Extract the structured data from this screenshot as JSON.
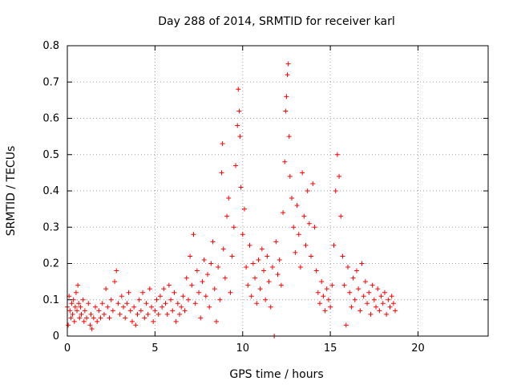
{
  "chart_data": {
    "type": "scatter",
    "title": "Day 288 of 2014, SRMTID for receiver karl",
    "xlabel": "GPS time / hours",
    "ylabel": "SRMTID / TECUs",
    "xlim": [
      0,
      24
    ],
    "ylim": [
      0,
      0.8
    ],
    "xticks": [
      0,
      5,
      10,
      15,
      20
    ],
    "yticks": [
      0,
      0.1,
      0.2,
      0.3,
      0.4,
      0.5,
      0.6,
      0.7,
      0.8
    ],
    "xtick_labels": [
      "0",
      "5",
      "10",
      "15",
      "20"
    ],
    "ytick_labels": [
      "0",
      "0.1",
      "0.2",
      "0.3",
      "0.4",
      "0.5",
      "0.6",
      "0.7",
      "0.8"
    ],
    "grid": true,
    "marker": "plus",
    "color": "#ff0000",
    "series": [
      {
        "name": "SRMTID",
        "points": [
          [
            0.0,
            0.08
          ],
          [
            0.05,
            0.03
          ],
          [
            0.1,
            0.11
          ],
          [
            0.15,
            0.07
          ],
          [
            0.2,
            0.05
          ],
          [
            0.25,
            0.09
          ],
          [
            0.3,
            0.06
          ],
          [
            0.35,
            0.1
          ],
          [
            0.4,
            0.04
          ],
          [
            0.45,
            0.08
          ],
          [
            0.5,
            0.12
          ],
          [
            0.55,
            0.07
          ],
          [
            0.6,
            0.14
          ],
          [
            0.65,
            0.09
          ],
          [
            0.7,
            0.05
          ],
          [
            0.75,
            0.08
          ],
          [
            0.8,
            0.06
          ],
          [
            0.9,
            0.1
          ],
          [
            0.95,
            0.04
          ],
          [
            1.0,
            0.07
          ],
          [
            1.1,
            0.05
          ],
          [
            1.2,
            0.09
          ],
          [
            1.3,
            0.03
          ],
          [
            1.35,
            0.06
          ],
          [
            1.4,
            0.02
          ],
          [
            1.5,
            0.05
          ],
          [
            1.6,
            0.08
          ],
          [
            1.7,
            0.04
          ],
          [
            1.8,
            0.07
          ],
          [
            1.9,
            0.05
          ],
          [
            2.0,
            0.09
          ],
          [
            2.1,
            0.06
          ],
          [
            2.2,
            0.13
          ],
          [
            2.3,
            0.08
          ],
          [
            2.4,
            0.05
          ],
          [
            2.5,
            0.1
          ],
          [
            2.6,
            0.07
          ],
          [
            2.7,
            0.15
          ],
          [
            2.8,
            0.18
          ],
          [
            2.9,
            0.09
          ],
          [
            3.0,
            0.06
          ],
          [
            3.1,
            0.11
          ],
          [
            3.2,
            0.08
          ],
          [
            3.3,
            0.05
          ],
          [
            3.4,
            0.09
          ],
          [
            3.5,
            0.12
          ],
          [
            3.6,
            0.07
          ],
          [
            3.7,
            0.04
          ],
          [
            3.8,
            0.08
          ],
          [
            3.9,
            0.03
          ],
          [
            4.0,
            0.06
          ],
          [
            4.1,
            0.1
          ],
          [
            4.2,
            0.07
          ],
          [
            4.3,
            0.12
          ],
          [
            4.4,
            0.05
          ],
          [
            4.5,
            0.09
          ],
          [
            4.6,
            0.06
          ],
          [
            4.7,
            0.13
          ],
          [
            4.8,
            0.08
          ],
          [
            4.9,
            0.04
          ],
          [
            5.0,
            0.07
          ],
          [
            5.1,
            0.1
          ],
          [
            5.2,
            0.06
          ],
          [
            5.3,
            0.11
          ],
          [
            5.4,
            0.08
          ],
          [
            5.5,
            0.13
          ],
          [
            5.6,
            0.09
          ],
          [
            5.7,
            0.06
          ],
          [
            5.8,
            0.14
          ],
          [
            5.9,
            0.1
          ],
          [
            6.0,
            0.07
          ],
          [
            6.1,
            0.12
          ],
          [
            6.2,
            0.04
          ],
          [
            6.3,
            0.09
          ],
          [
            6.4,
            0.06
          ],
          [
            6.5,
            0.08
          ],
          [
            6.6,
            0.11
          ],
          [
            6.7,
            0.07
          ],
          [
            6.8,
            0.16
          ],
          [
            6.9,
            0.1
          ],
          [
            7.0,
            0.22
          ],
          [
            7.1,
            0.14
          ],
          [
            7.2,
            0.28
          ],
          [
            7.3,
            0.09
          ],
          [
            7.4,
            0.18
          ],
          [
            7.5,
            0.12
          ],
          [
            7.6,
            0.05
          ],
          [
            7.7,
            0.15
          ],
          [
            7.8,
            0.21
          ],
          [
            7.9,
            0.11
          ],
          [
            8.0,
            0.17
          ],
          [
            8.1,
            0.08
          ],
          [
            8.2,
            0.2
          ],
          [
            8.3,
            0.26
          ],
          [
            8.4,
            0.13
          ],
          [
            8.5,
            0.04
          ],
          [
            8.6,
            0.19
          ],
          [
            8.7,
            0.1
          ],
          [
            8.8,
            0.45
          ],
          [
            8.85,
            0.53
          ],
          [
            8.9,
            0.24
          ],
          [
            9.0,
            0.16
          ],
          [
            9.1,
            0.33
          ],
          [
            9.2,
            0.38
          ],
          [
            9.3,
            0.12
          ],
          [
            9.4,
            0.22
          ],
          [
            9.5,
            0.3
          ],
          [
            9.6,
            0.47
          ],
          [
            9.7,
            0.58
          ],
          [
            9.75,
            0.68
          ],
          [
            9.8,
            0.62
          ],
          [
            9.85,
            0.55
          ],
          [
            9.9,
            0.41
          ],
          [
            10.0,
            0.28
          ],
          [
            10.1,
            0.35
          ],
          [
            10.2,
            0.19
          ],
          [
            10.3,
            0.14
          ],
          [
            10.4,
            0.25
          ],
          [
            10.5,
            0.11
          ],
          [
            10.6,
            0.2
          ],
          [
            10.7,
            0.16
          ],
          [
            10.8,
            0.09
          ],
          [
            10.9,
            0.21
          ],
          [
            11.0,
            0.13
          ],
          [
            11.1,
            0.24
          ],
          [
            11.2,
            0.18
          ],
          [
            11.3,
            0.1
          ],
          [
            11.4,
            0.22
          ],
          [
            11.5,
            0.15
          ],
          [
            11.6,
            0.08
          ],
          [
            11.7,
            0.19
          ],
          [
            11.8,
            0.0
          ],
          [
            11.9,
            0.26
          ],
          [
            12.0,
            0.17
          ],
          [
            12.1,
            0.21
          ],
          [
            12.2,
            0.14
          ],
          [
            12.3,
            0.34
          ],
          [
            12.4,
            0.48
          ],
          [
            12.45,
            0.62
          ],
          [
            12.5,
            0.66
          ],
          [
            12.55,
            0.72
          ],
          [
            12.6,
            0.75
          ],
          [
            12.65,
            0.55
          ],
          [
            12.7,
            0.44
          ],
          [
            12.8,
            0.38
          ],
          [
            12.9,
            0.3
          ],
          [
            13.0,
            0.23
          ],
          [
            13.1,
            0.36
          ],
          [
            13.2,
            0.28
          ],
          [
            13.3,
            0.19
          ],
          [
            13.4,
            0.45
          ],
          [
            13.5,
            0.33
          ],
          [
            13.6,
            0.25
          ],
          [
            13.7,
            0.4
          ],
          [
            13.8,
            0.31
          ],
          [
            13.9,
            0.22
          ],
          [
            14.0,
            0.42
          ],
          [
            14.1,
            0.3
          ],
          [
            14.2,
            0.18
          ],
          [
            14.3,
            0.12
          ],
          [
            14.4,
            0.09
          ],
          [
            14.5,
            0.15
          ],
          [
            14.6,
            0.11
          ],
          [
            14.7,
            0.07
          ],
          [
            14.8,
            0.13
          ],
          [
            14.9,
            0.1
          ],
          [
            15.0,
            0.08
          ],
          [
            15.1,
            0.14
          ],
          [
            15.2,
            0.25
          ],
          [
            15.3,
            0.4
          ],
          [
            15.4,
            0.5
          ],
          [
            15.5,
            0.44
          ],
          [
            15.6,
            0.33
          ],
          [
            15.7,
            0.22
          ],
          [
            15.8,
            0.14
          ],
          [
            15.9,
            0.03
          ],
          [
            16.0,
            0.19
          ],
          [
            16.1,
            0.12
          ],
          [
            16.2,
            0.08
          ],
          [
            16.3,
            0.16
          ],
          [
            16.4,
            0.1
          ],
          [
            16.5,
            0.18
          ],
          [
            16.6,
            0.13
          ],
          [
            16.7,
            0.07
          ],
          [
            16.8,
            0.2
          ],
          [
            16.9,
            0.11
          ],
          [
            17.0,
            0.15
          ],
          [
            17.1,
            0.09
          ],
          [
            17.2,
            0.12
          ],
          [
            17.3,
            0.06
          ],
          [
            17.4,
            0.14
          ],
          [
            17.5,
            0.1
          ],
          [
            17.6,
            0.08
          ],
          [
            17.7,
            0.13
          ],
          [
            17.8,
            0.07
          ],
          [
            17.9,
            0.11
          ],
          [
            18.0,
            0.09
          ],
          [
            18.1,
            0.12
          ],
          [
            18.2,
            0.06
          ],
          [
            18.3,
            0.1
          ],
          [
            18.4,
            0.08
          ],
          [
            18.5,
            0.11
          ],
          [
            18.6,
            0.09
          ],
          [
            18.7,
            0.07
          ]
        ]
      }
    ]
  }
}
